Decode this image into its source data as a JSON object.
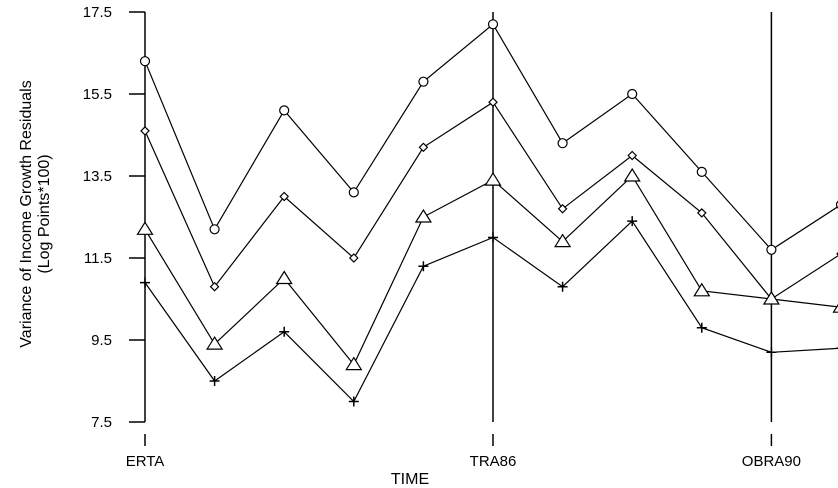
{
  "chart_data": {
    "type": "line",
    "title": "",
    "xlabel": "TIME",
    "ylabel": "Variance of Income Growth Residuals",
    "ylabel_unit": "(Log Points*100)",
    "x": [
      1,
      2,
      3,
      4,
      5,
      6,
      7,
      8,
      9,
      10,
      11,
      12
    ],
    "xlim": [
      0.7,
      12.4
    ],
    "ylim": [
      7.5,
      17.5
    ],
    "yticks": [
      7.5,
      9.5,
      11.5,
      13.5,
      15.5,
      17.5
    ],
    "ytick_labels": [
      "7.5",
      "9.5",
      "11.5",
      "13.5",
      "15.5",
      "17.5"
    ],
    "event_lines": [
      {
        "x": 1,
        "label": "ERTA",
        "vertical_line": false
      },
      {
        "x": 6,
        "label": "TRA86",
        "vertical_line": true
      },
      {
        "x": 10,
        "label": "OBRA90",
        "vertical_line": true
      }
    ],
    "grid": false,
    "legend": "none",
    "series": [
      {
        "marker": "circle",
        "values": [
          16.3,
          12.2,
          15.1,
          13.1,
          15.8,
          17.2,
          14.3,
          15.5,
          13.6,
          11.7,
          12.8,
          null
        ]
      },
      {
        "marker": "diamond",
        "values": [
          14.6,
          10.8,
          13.0,
          11.5,
          14.2,
          15.3,
          12.7,
          14.0,
          12.6,
          10.5,
          11.6,
          null
        ]
      },
      {
        "marker": "triangle",
        "values": [
          12.2,
          9.4,
          11.0,
          8.9,
          12.5,
          13.4,
          11.9,
          13.5,
          10.7,
          10.5,
          10.3,
          null
        ]
      },
      {
        "marker": "plus",
        "values": [
          10.9,
          8.5,
          9.7,
          8.0,
          11.3,
          12.0,
          10.8,
          12.4,
          9.8,
          9.2,
          9.3,
          null
        ]
      }
    ]
  }
}
